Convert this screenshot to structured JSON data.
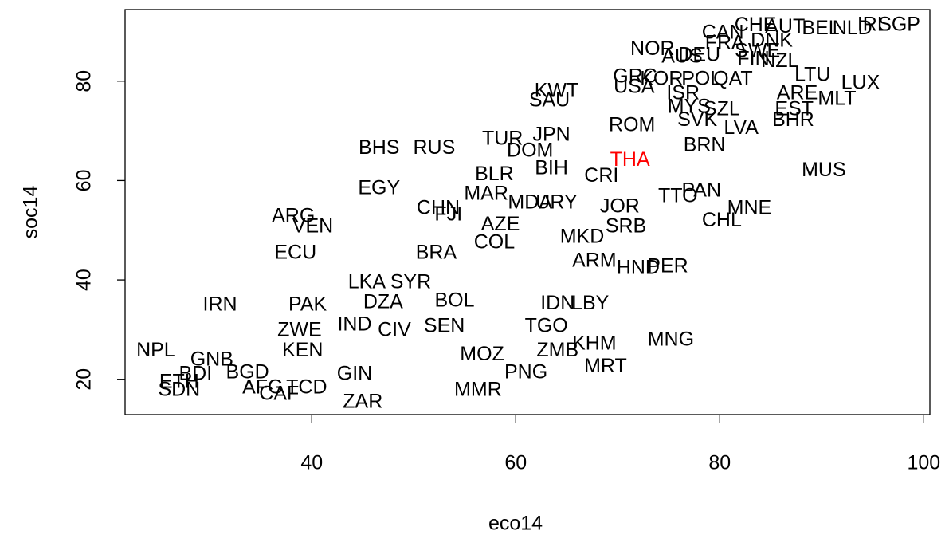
{
  "chart_data": {
    "type": "scatter",
    "xlabel": "eco14",
    "ylabel": "soc14",
    "xlim": [
      21.7,
      100.6
    ],
    "ylim": [
      12.9,
      94.4
    ],
    "xticks": [
      40,
      60,
      80,
      100
    ],
    "yticks": [
      20,
      40,
      60,
      80
    ],
    "series": [
      {
        "color": "#000000",
        "labels": [
          "CHE",
          "AUT",
          "BEL",
          "NLD",
          "IRL",
          "SGP",
          "CAN",
          "FRA",
          "DNK",
          "NOR",
          "DEU",
          "AUS",
          "SWE",
          "FIN",
          "NZL",
          "KWT",
          "SAU",
          "USA",
          "GRC",
          "KOR",
          "POL",
          "QAT",
          "ISR",
          "LUX",
          "ARE",
          "MLT",
          "LTU",
          "MYS",
          "SZL",
          "EST",
          "BHR",
          "ROM",
          "SVK",
          "LVA",
          "BRN",
          "TUR",
          "JPN",
          "DOM",
          "RUS",
          "BHS",
          "BIH",
          "BLR",
          "CRI",
          "MUS",
          "EGY",
          "MAR",
          "CHN",
          "FJI",
          "MDA",
          "URY",
          "JOR",
          "TTO",
          "PAN",
          "MNE",
          "CHL",
          "ARG",
          "VEN",
          "ECU",
          "AZE",
          "SRB",
          "BRA",
          "COL",
          "MKD",
          "LKA",
          "SYR",
          "ARM",
          "HND",
          "PER",
          "IRN",
          "PAK",
          "DZA",
          "BOL",
          "IDN",
          "LBY",
          "IND",
          "ZWE",
          "CIV",
          "SEN",
          "TGO",
          "KEN",
          "MNG",
          "KHM",
          "ZMB",
          "MOZ",
          "MRT",
          "PNG",
          "NPL",
          "GNB",
          "BGD",
          "BDI",
          "ETH",
          "SDN",
          "AFG",
          "TCD",
          "CAF",
          "ZAR",
          "GIN",
          "MMR"
        ],
        "x": [
          83.5,
          86.4,
          89.9,
          93.0,
          95.0,
          97.6,
          80.3,
          80.5,
          85.1,
          73.4,
          78.0,
          76.3,
          83.7,
          83.3,
          85.9,
          64.0,
          63.3,
          71.6,
          71.7,
          74.3,
          78.2,
          81.3,
          76.4,
          93.8,
          87.6,
          91.5,
          89.1,
          77.0,
          80.2,
          87.3,
          87.2,
          71.4,
          77.8,
          82.1,
          78.5,
          58.7,
          63.5,
          61.4,
          52.0,
          46.6,
          63.5,
          57.9,
          68.4,
          90.2,
          46.6,
          57.1,
          52.4,
          53.4,
          61.4,
          64.0,
          70.2,
          75.9,
          78.2,
          82.9,
          80.2,
          38.2,
          40.1,
          38.4,
          58.5,
          70.8,
          52.2,
          57.9,
          66.5,
          45.4,
          49.7,
          67.7,
          72.0,
          74.9,
          31.0,
          39.6,
          47.0,
          54.0,
          64.1,
          67.3,
          44.2,
          38.8,
          48.1,
          53.0,
          63.0,
          39.1,
          75.2,
          67.7,
          64.1,
          56.7,
          68.8,
          61.0,
          24.7,
          30.2,
          33.7,
          28.6,
          27.0,
          27.0,
          35.2,
          39.5,
          36.8,
          45.0,
          44.2,
          56.3
        ],
        "y": [
          91.1,
          90.8,
          90.5,
          90.5,
          91.2,
          91.2,
          89.6,
          87.5,
          88.0,
          86.3,
          85.1,
          84.8,
          85.9,
          84.3,
          83.9,
          77.9,
          76.0,
          78.7,
          80.8,
          80.3,
          80.3,
          80.3,
          77.4,
          79.5,
          77.4,
          76.3,
          81.1,
          74.7,
          74.2,
          74.2,
          72.0,
          71.0,
          72.0,
          70.4,
          67.0,
          68.3,
          69.1,
          65.9,
          66.4,
          66.4,
          62.3,
          61.1,
          60.8,
          61.9,
          58.3,
          57.2,
          54.3,
          53.0,
          55.4,
          55.4,
          54.6,
          56.7,
          57.8,
          54.3,
          51.8,
          52.7,
          50.6,
          45.3,
          51.0,
          50.6,
          45.3,
          47.4,
          48.5,
          39.4,
          39.4,
          43.7,
          42.3,
          42.6,
          34.9,
          34.9,
          35.4,
          35.7,
          35.1,
          35.1,
          30.9,
          29.8,
          29.8,
          30.6,
          30.6,
          25.7,
          27.8,
          27.0,
          25.7,
          24.9,
          22.5,
          21.3,
          25.7,
          23.8,
          21.3,
          20.9,
          19.3,
          17.7,
          18.2,
          18.2,
          16.9,
          15.3,
          20.9,
          17.7
        ]
      },
      {
        "color": "#ff0000",
        "labels": [
          "THA"
        ],
        "x": [
          71.2
        ],
        "y": [
          64.0
        ]
      }
    ]
  }
}
